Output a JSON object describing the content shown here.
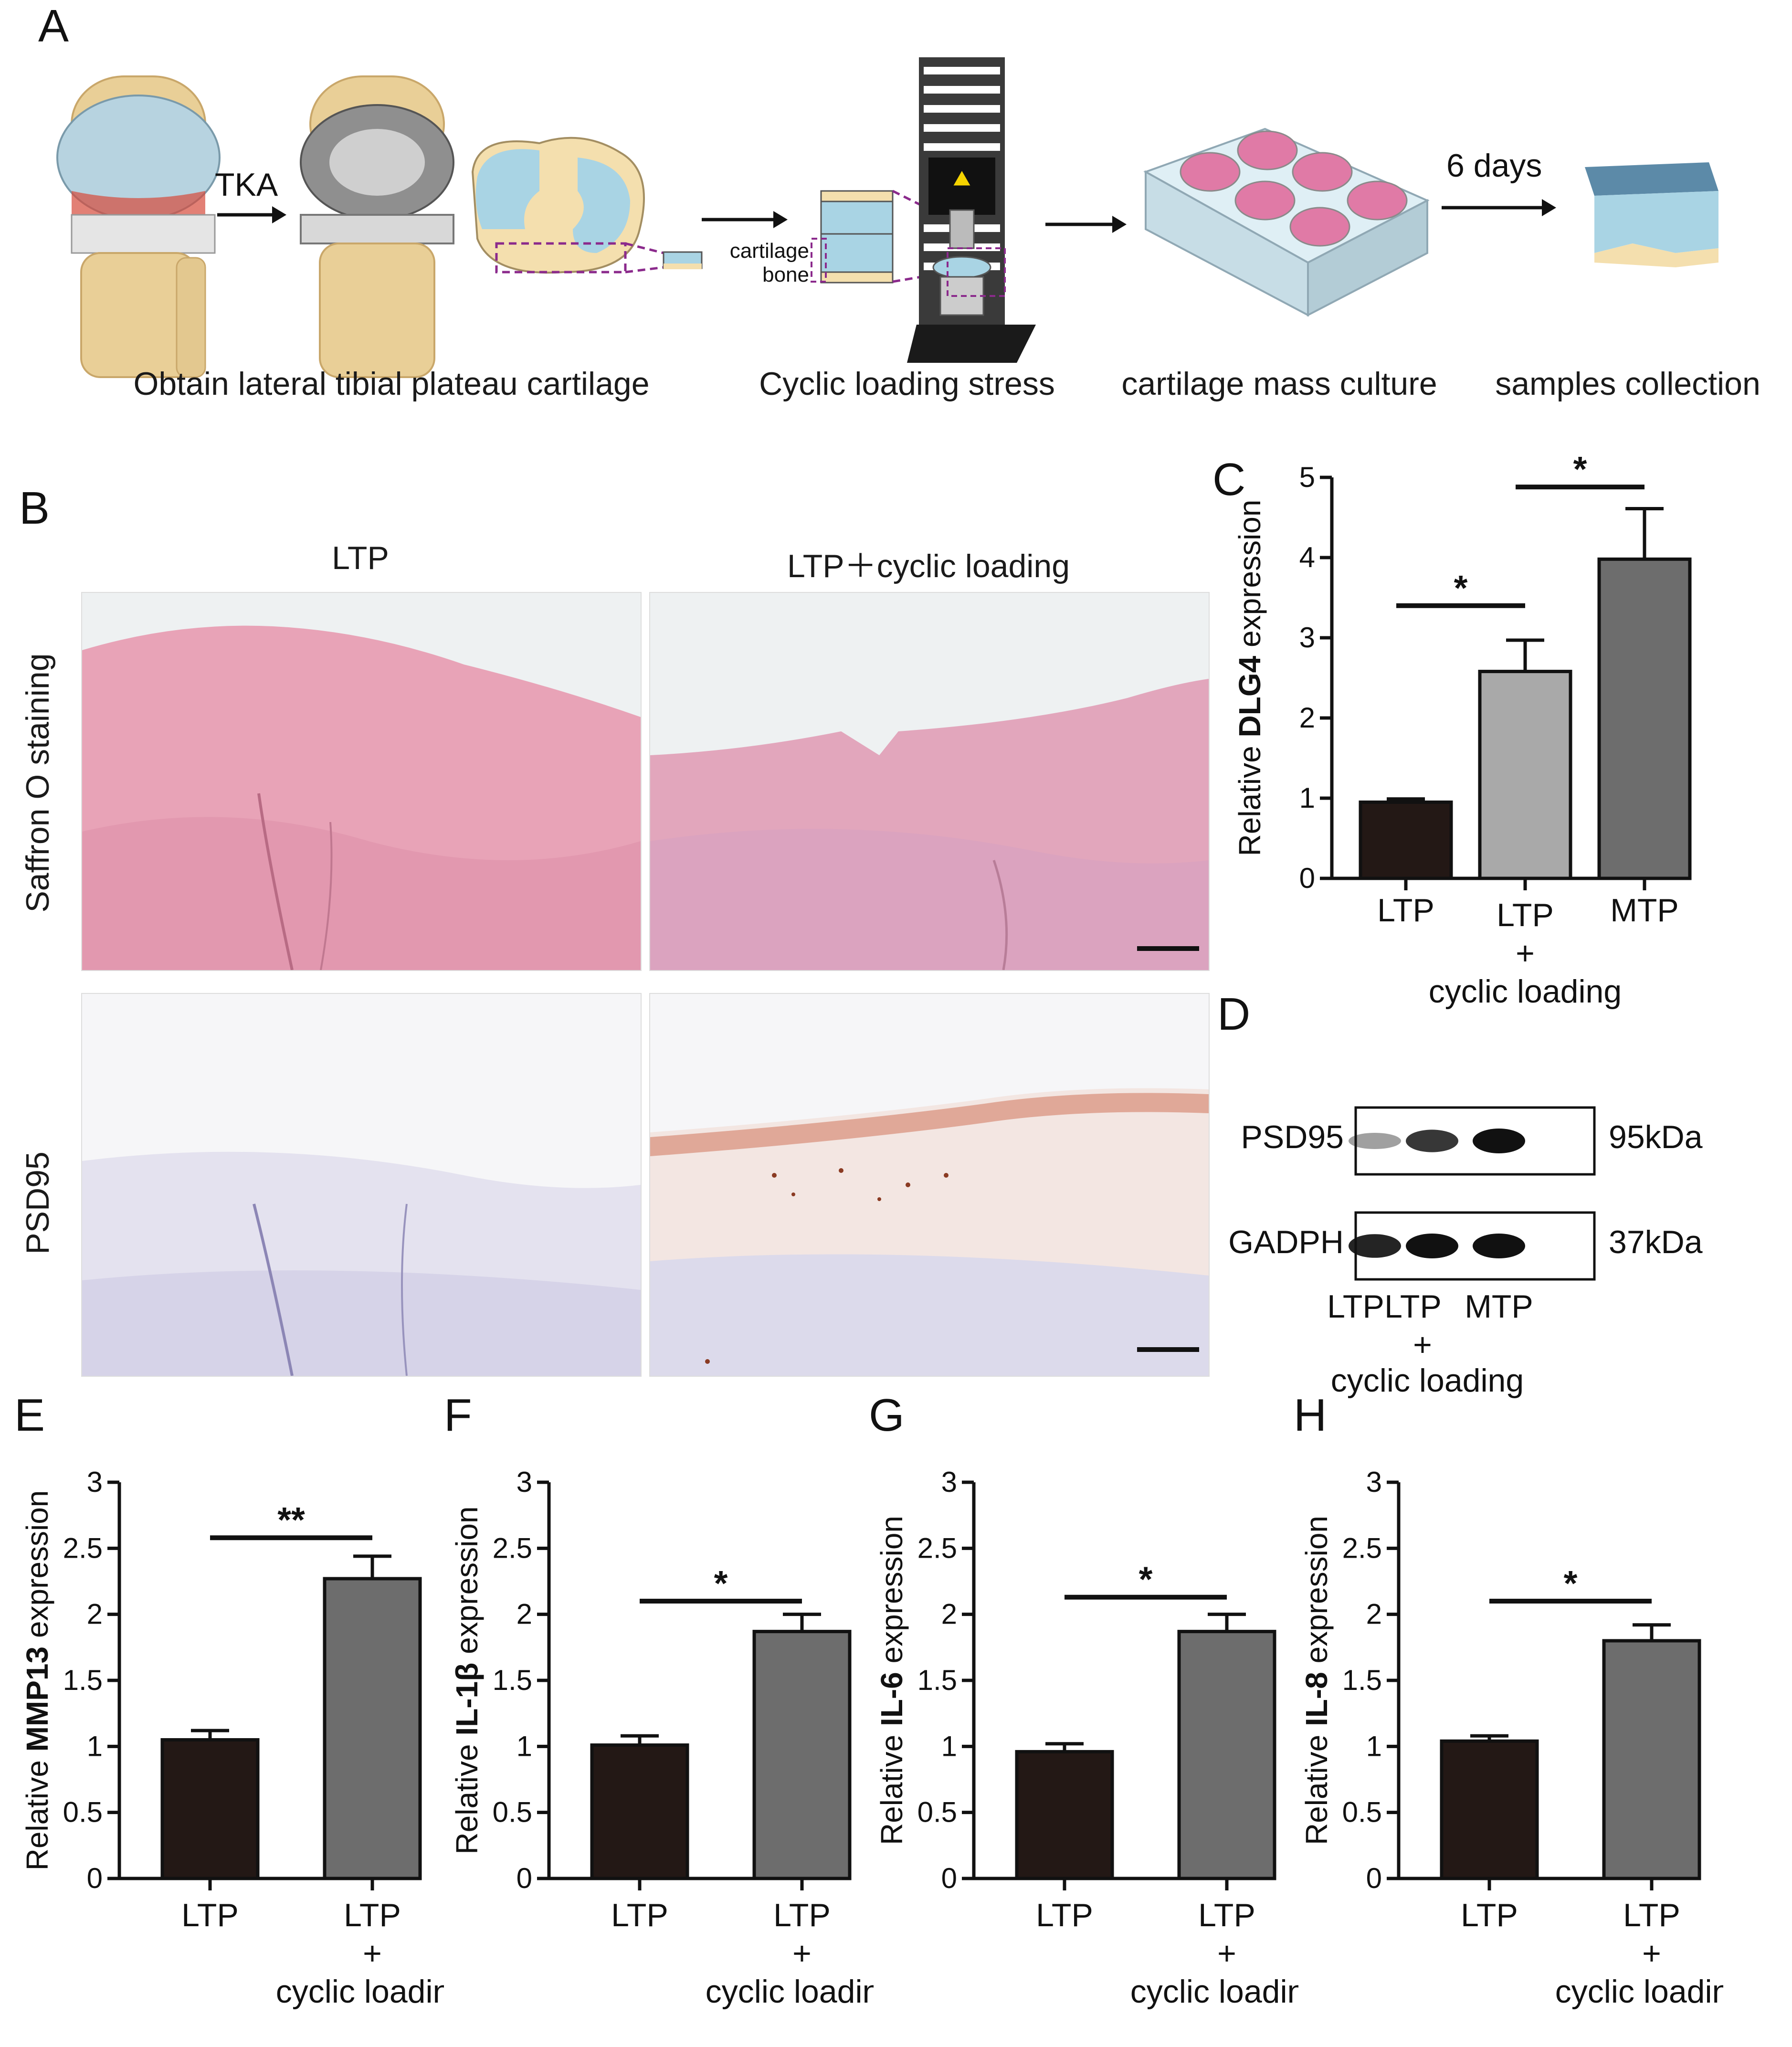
{
  "panels": {
    "A": {
      "label": "A",
      "tka_label": "TKA",
      "days_label": "6 days",
      "layer_cartilage": "cartilage",
      "layer_bone": "bone",
      "captions": [
        "Obtain lateral tibial plateau cartilage",
        "Cyclic loading stress",
        "cartilage mass culture",
        "samples collection"
      ]
    },
    "B": {
      "label": "B",
      "col_headers": [
        "LTP",
        "LTP＋cyclic loading"
      ],
      "row_headers": [
        "Saffron O staining",
        "PSD95"
      ]
    },
    "D": {
      "label": "D",
      "rows": [
        {
          "name": "PSD95",
          "size": "95kDa",
          "intensities": [
            0.25,
            0.8,
            1.0
          ]
        },
        {
          "name": "GADPH",
          "size": "37kDa",
          "intensities": [
            0.9,
            1.0,
            1.0
          ]
        }
      ],
      "lanes": [
        "LTP",
        "LTP",
        "MTP"
      ],
      "lane_plus": "+",
      "lane_sub": "cyclic loading"
    }
  },
  "colors": {
    "bar_dark": "#231815",
    "bar_light": "#a9a9a9",
    "bar_mid": "#6d6d6d",
    "saffron": "#e8a3b7",
    "psd95_bg": "#ecebf3",
    "dashed_purple": "#8b2a8c",
    "cartilage_blue": "#a9d4e4",
    "bone_tan": "#f4dfae"
  },
  "chart_data": [
    {
      "panel": "C",
      "type": "bar",
      "categories": [
        "LTP",
        "LTP + cyclic loading",
        "MTP"
      ],
      "category_lines": [
        [
          "LTP"
        ],
        [
          "LTP",
          "+",
          "cyclic loading"
        ],
        [
          "MTP"
        ]
      ],
      "values": [
        0.95,
        2.58,
        3.98
      ],
      "errors": [
        0.04,
        0.39,
        0.63
      ],
      "bar_colors": [
        "#231815",
        "#a9a9a9",
        "#6d6d6d"
      ],
      "ylabel_prefix": "Relative ",
      "ylabel_bold": "DLG4",
      "ylabel_suffix": " expression",
      "ylim": [
        0,
        5
      ],
      "yticks": [
        "0",
        "1",
        "2",
        "3",
        "4",
        "5"
      ],
      "significance": [
        {
          "from": 0,
          "to": 1,
          "label": "*",
          "y": 3.4
        },
        {
          "from": 1,
          "to": 2,
          "label": "*",
          "y": 4.88
        }
      ]
    },
    {
      "panel": "E",
      "type": "bar",
      "categories": [
        "LTP",
        "LTP + cyclic loading"
      ],
      "category_lines": [
        [
          "LTP"
        ],
        [
          "LTP",
          "+",
          "cyclic loading"
        ]
      ],
      "values": [
        1.05,
        2.27
      ],
      "errors": [
        0.07,
        0.17
      ],
      "bar_colors": [
        "#231815",
        "#6d6d6d"
      ],
      "ylabel_prefix": "Relative ",
      "ylabel_bold": "MMP13",
      "ylabel_suffix": " expression",
      "ylim": [
        0,
        3
      ],
      "yticks": [
        "0",
        "0.5",
        "1",
        "1.5",
        "2",
        "2.5",
        "3"
      ],
      "significance": [
        {
          "from": 0,
          "to": 1,
          "label": "**",
          "y": 2.58
        }
      ]
    },
    {
      "panel": "F",
      "type": "bar",
      "categories": [
        "LTP",
        "LTP + cyclic loading"
      ],
      "category_lines": [
        [
          "LTP"
        ],
        [
          "LTP",
          "+",
          "cyclic loading"
        ]
      ],
      "values": [
        1.01,
        1.87
      ],
      "errors": [
        0.07,
        0.13
      ],
      "bar_colors": [
        "#231815",
        "#6d6d6d"
      ],
      "ylabel_prefix": "Relative ",
      "ylabel_bold": "IL-1β",
      "ylabel_suffix": " expression",
      "ylim": [
        0,
        3
      ],
      "yticks": [
        "0",
        "0.5",
        "1",
        "1.5",
        "2",
        "2.5",
        "3"
      ],
      "significance": [
        {
          "from": 0,
          "to": 1,
          "label": "*",
          "y": 2.1
        }
      ]
    },
    {
      "panel": "G",
      "type": "bar",
      "categories": [
        "LTP",
        "LTP + cyclic loading"
      ],
      "category_lines": [
        [
          "LTP"
        ],
        [
          "LTP",
          "+",
          "cyclic loading"
        ]
      ],
      "values": [
        0.96,
        1.87
      ],
      "errors": [
        0.06,
        0.13
      ],
      "bar_colors": [
        "#231815",
        "#6d6d6d"
      ],
      "ylabel_prefix": "Relative ",
      "ylabel_bold": "IL-6",
      "ylabel_suffix": " expression",
      "ylim": [
        0,
        3
      ],
      "yticks": [
        "0",
        "0.5",
        "1",
        "1.5",
        "2",
        "2.5",
        "3"
      ],
      "significance": [
        {
          "from": 0,
          "to": 1,
          "label": "*",
          "y": 2.13
        }
      ]
    },
    {
      "panel": "H",
      "type": "bar",
      "categories": [
        "LTP",
        "LTP + cyclic loading"
      ],
      "category_lines": [
        [
          "LTP"
        ],
        [
          "LTP",
          "+",
          "cyclic loading"
        ]
      ],
      "values": [
        1.04,
        1.8
      ],
      "errors": [
        0.04,
        0.12
      ],
      "bar_colors": [
        "#231815",
        "#6d6d6d"
      ],
      "ylabel_prefix": "Relative ",
      "ylabel_bold": "IL-8",
      "ylabel_suffix": " expression",
      "ylim": [
        0,
        3
      ],
      "yticks": [
        "0",
        "0.5",
        "1",
        "1.5",
        "2",
        "2.5",
        "3"
      ],
      "significance": [
        {
          "from": 0,
          "to": 1,
          "label": "*",
          "y": 2.1
        }
      ]
    }
  ]
}
